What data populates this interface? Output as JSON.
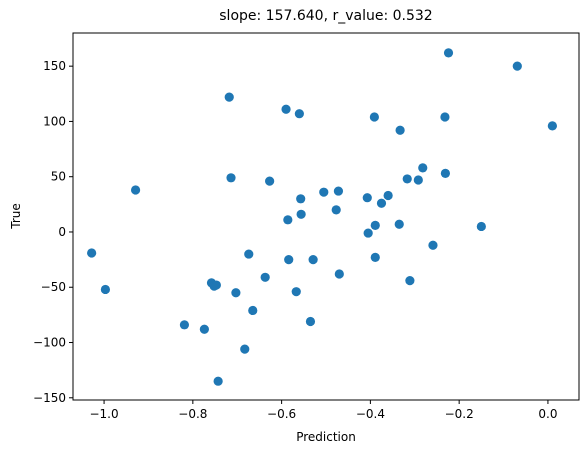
{
  "chart_data": {
    "type": "scatter",
    "title": "slope: 157.640, r_value: 0.532",
    "xlabel": "Prediction",
    "ylabel": "True",
    "xlim": [
      -1.07,
      0.07
    ],
    "ylim": [
      -152,
      180
    ],
    "xticks": [
      -1.0,
      -0.8,
      -0.6,
      -0.4,
      -0.2,
      0.0
    ],
    "xtick_labels": [
      "−1.0",
      "−0.8",
      "−0.6",
      "−0.4",
      "−0.2",
      "0.0"
    ],
    "yticks": [
      -150,
      -100,
      -50,
      0,
      50,
      100,
      150
    ],
    "ytick_labels": [
      "−150",
      "−100",
      "−50",
      "0",
      "50",
      "100",
      "150"
    ],
    "grid": false,
    "marker_color": "#1f77b4",
    "points": [
      {
        "x": -1.028,
        "y": -19
      },
      {
        "x": -0.997,
        "y": -52
      },
      {
        "x": -0.929,
        "y": 38
      },
      {
        "x": -0.819,
        "y": -84
      },
      {
        "x": -0.774,
        "y": -88
      },
      {
        "x": -0.758,
        "y": -46
      },
      {
        "x": -0.752,
        "y": -49
      },
      {
        "x": -0.747,
        "y": -48
      },
      {
        "x": -0.743,
        "y": -135
      },
      {
        "x": -0.718,
        "y": 122
      },
      {
        "x": -0.714,
        "y": 49
      },
      {
        "x": -0.703,
        "y": -55
      },
      {
        "x": -0.683,
        "y": -106
      },
      {
        "x": -0.674,
        "y": -20
      },
      {
        "x": -0.665,
        "y": -71
      },
      {
        "x": -0.637,
        "y": -41
      },
      {
        "x": -0.627,
        "y": 46
      },
      {
        "x": -0.59,
        "y": 111
      },
      {
        "x": -0.586,
        "y": 11
      },
      {
        "x": -0.584,
        "y": -25
      },
      {
        "x": -0.567,
        "y": -54
      },
      {
        "x": -0.56,
        "y": 107
      },
      {
        "x": -0.557,
        "y": 30
      },
      {
        "x": -0.556,
        "y": 16
      },
      {
        "x": -0.535,
        "y": -81
      },
      {
        "x": -0.529,
        "y": -25
      },
      {
        "x": -0.505,
        "y": 36
      },
      {
        "x": -0.477,
        "y": 20
      },
      {
        "x": -0.472,
        "y": 37
      },
      {
        "x": -0.47,
        "y": -38
      },
      {
        "x": -0.407,
        "y": 31
      },
      {
        "x": -0.405,
        "y": -1
      },
      {
        "x": -0.391,
        "y": 104
      },
      {
        "x": -0.389,
        "y": 6
      },
      {
        "x": -0.389,
        "y": -23
      },
      {
        "x": -0.375,
        "y": 26
      },
      {
        "x": -0.36,
        "y": 33
      },
      {
        "x": -0.335,
        "y": 7
      },
      {
        "x": -0.333,
        "y": 92
      },
      {
        "x": -0.317,
        "y": 48
      },
      {
        "x": -0.311,
        "y": -44
      },
      {
        "x": -0.292,
        "y": 47
      },
      {
        "x": -0.282,
        "y": 58
      },
      {
        "x": -0.259,
        "y": -12
      },
      {
        "x": -0.232,
        "y": 104
      },
      {
        "x": -0.231,
        "y": 53
      },
      {
        "x": -0.224,
        "y": 162
      },
      {
        "x": -0.15,
        "y": 5
      },
      {
        "x": -0.069,
        "y": 150
      },
      {
        "x": 0.01,
        "y": 96
      }
    ]
  }
}
